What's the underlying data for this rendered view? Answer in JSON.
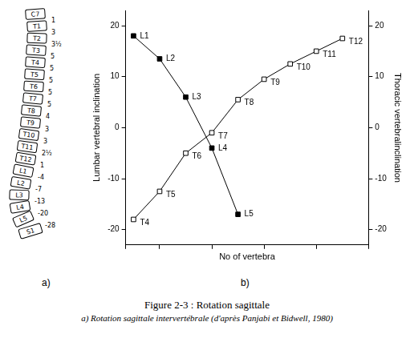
{
  "chart_data": {
    "type": "line",
    "x_title": "No of vertebra",
    "y_title": "Lumbar vertebral inclination",
    "y2_title": "Thoracic vertebralinclination",
    "xlim": [
      0.7,
      10
    ],
    "ylim": [
      -23,
      23
    ],
    "yticks": [
      -20,
      -10,
      0,
      10,
      20
    ],
    "y2lim": [
      -23,
      23
    ],
    "y2ticks": [
      -20,
      -10,
      0,
      10,
      20
    ],
    "grid": false,
    "tick_labels": "y",
    "series": [
      {
        "labels": [
          "L1",
          "L2",
          "L3",
          "L4",
          "L5"
        ],
        "x": [
          1,
          2,
          3,
          4,
          5
        ],
        "values": [
          18,
          13.5,
          6,
          -4,
          -17
        ],
        "color": "#000000",
        "marker": "filled_square",
        "axis": "y"
      },
      {
        "labels": [
          "T4",
          "T5",
          "T6",
          "T7",
          "T8",
          "T9",
          "T10",
          "T11",
          "T12"
        ],
        "x": [
          1,
          2,
          3,
          4,
          5,
          6,
          7,
          8,
          9
        ],
        "values": [
          -18,
          -12.5,
          -5,
          -1,
          5.5,
          9.5,
          12.5,
          15,
          17.5
        ],
        "color": "#000000",
        "marker": "open_square",
        "axis": "y2"
      }
    ]
  },
  "figure": {
    "spine": {
      "vertebrae": [
        "C7",
        "T1",
        "T2",
        "T3",
        "T4",
        "T5",
        "T6",
        "T7",
        "T8",
        "T9",
        "T10",
        "T11",
        "T12",
        "L1",
        "L2",
        "L3",
        "L4",
        "L5",
        "S1"
      ],
      "angles": [
        "1",
        "3",
        "3½",
        "5",
        "5",
        "5",
        "5",
        "5",
        "4",
        "3",
        "3",
        "2½",
        "1",
        "-4",
        "-7",
        "-13",
        "-20",
        "-28"
      ]
    },
    "panel_labels": [
      "a)",
      "b)"
    ],
    "caption": [
      "Figure 2-3 : Rotation sagittale",
      "a) Rotation sagittale intervertébrale (d'après Panjabi et Bidwell, 1980)"
    ]
  }
}
